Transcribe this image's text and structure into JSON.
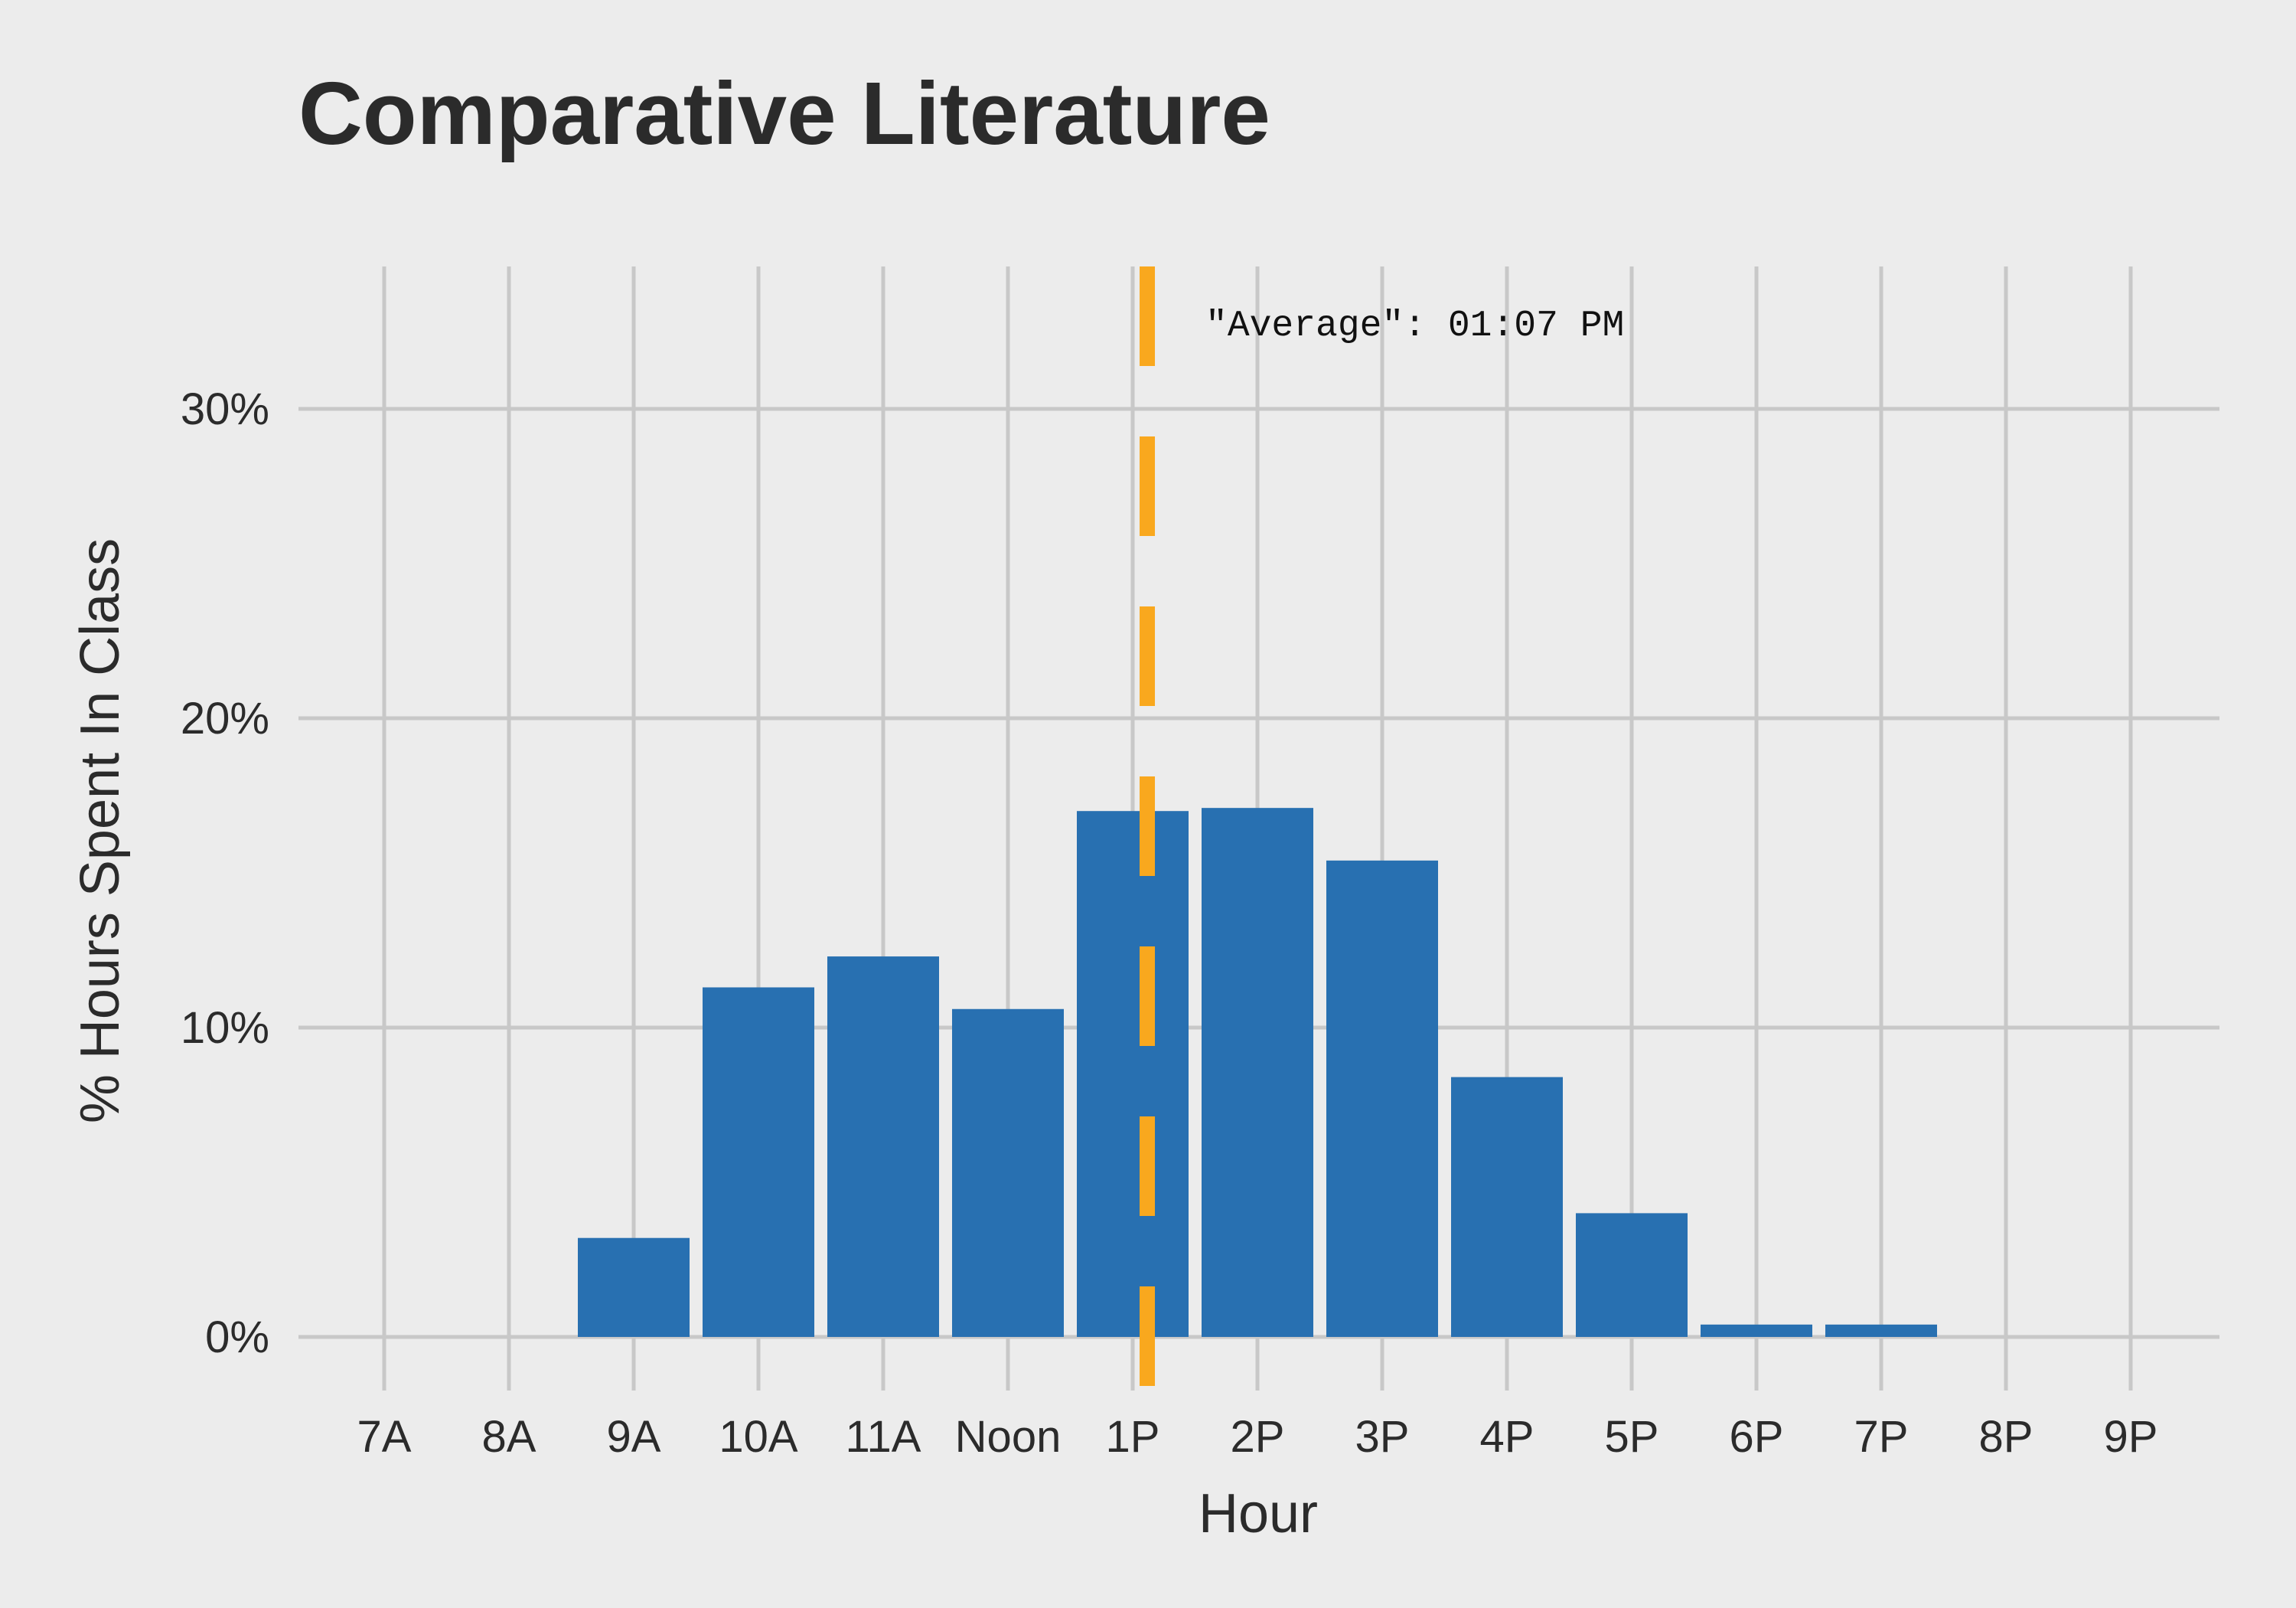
{
  "chart_data": {
    "type": "bar",
    "title": "Comparative Literature",
    "xlabel": "Hour",
    "ylabel": "% Hours Spent In Class",
    "categories": [
      "7A",
      "8A",
      "9A",
      "10A",
      "11A",
      "Noon",
      "1P",
      "2P",
      "3P",
      "4P",
      "5P",
      "6P",
      "7P",
      "8P",
      "9P"
    ],
    "values": [
      0,
      0,
      3.2,
      11.3,
      12.3,
      10.6,
      17.0,
      17.1,
      15.4,
      8.4,
      4.0,
      0.4,
      0.4,
      0,
      0
    ],
    "ylim": [
      -1.7,
      34.5
    ],
    "yticks": [
      0,
      10,
      20,
      30
    ],
    "ytick_labels": [
      "0%",
      "10%",
      "20%",
      "30%"
    ],
    "grid": true,
    "colors": {
      "bar": "#2870b1",
      "average_line": "#f9a81e",
      "background": "#ececec",
      "grid": "#c8c8c8",
      "text": "#2b2b2b"
    },
    "average": {
      "hour": 13.1167,
      "label": "\"Average\": 01:07 PM"
    }
  }
}
